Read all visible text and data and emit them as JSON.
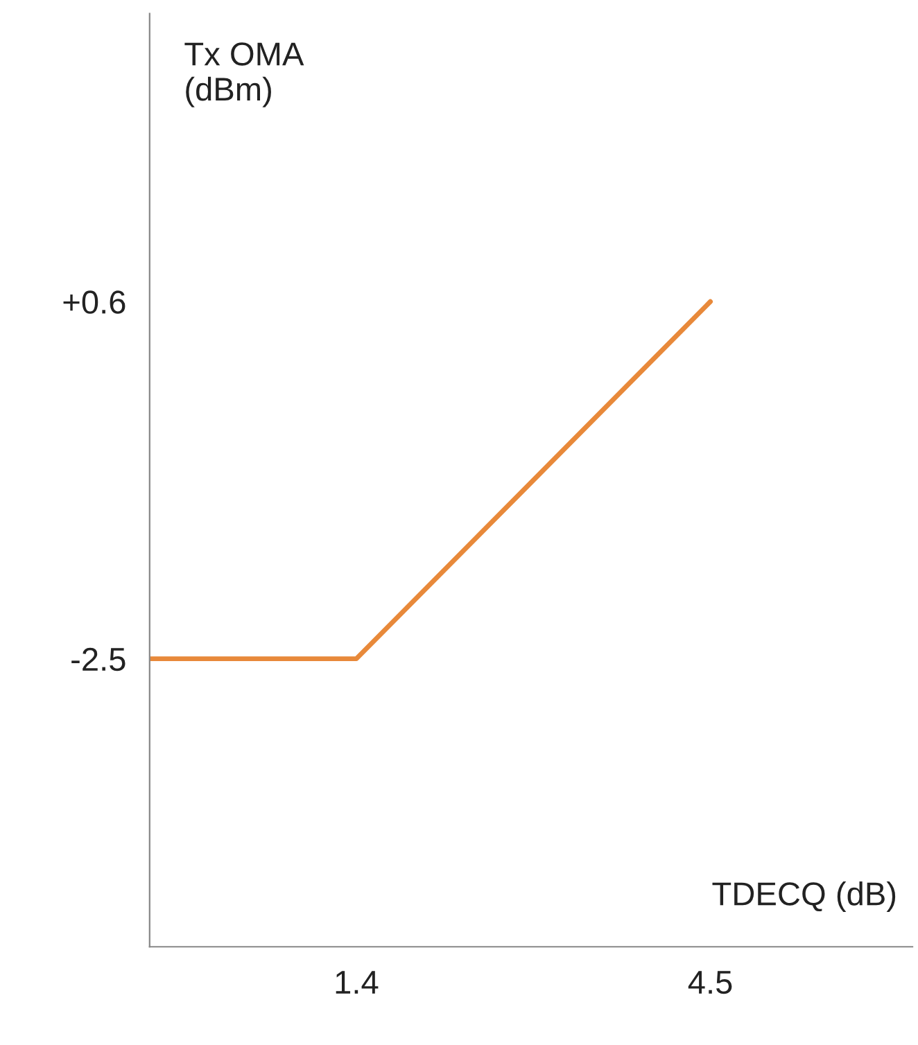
{
  "chart_data": {
    "type": "line",
    "xlabel": "TDECQ (dB)",
    "ylabel": "Tx OMA\n(dBm)",
    "x": [
      -0.41,
      1.4,
      4.5
    ],
    "series": [
      {
        "color": "#e8893a",
        "values": [
          -2.5,
          -2.5,
          0.6
        ]
      }
    ],
    "xlim": [
      -0.41,
      6.27
    ],
    "ylim": [
      -5.0,
      3.1
    ],
    "xticks": [
      1.4,
      4.5
    ],
    "yticks": [
      {
        "value": 0.6,
        "label": "+0.6"
      },
      {
        "value": -2.5,
        "label": "-2.5"
      }
    ],
    "grid": false,
    "legend": false,
    "marker": "none",
    "line_style": "solid"
  }
}
